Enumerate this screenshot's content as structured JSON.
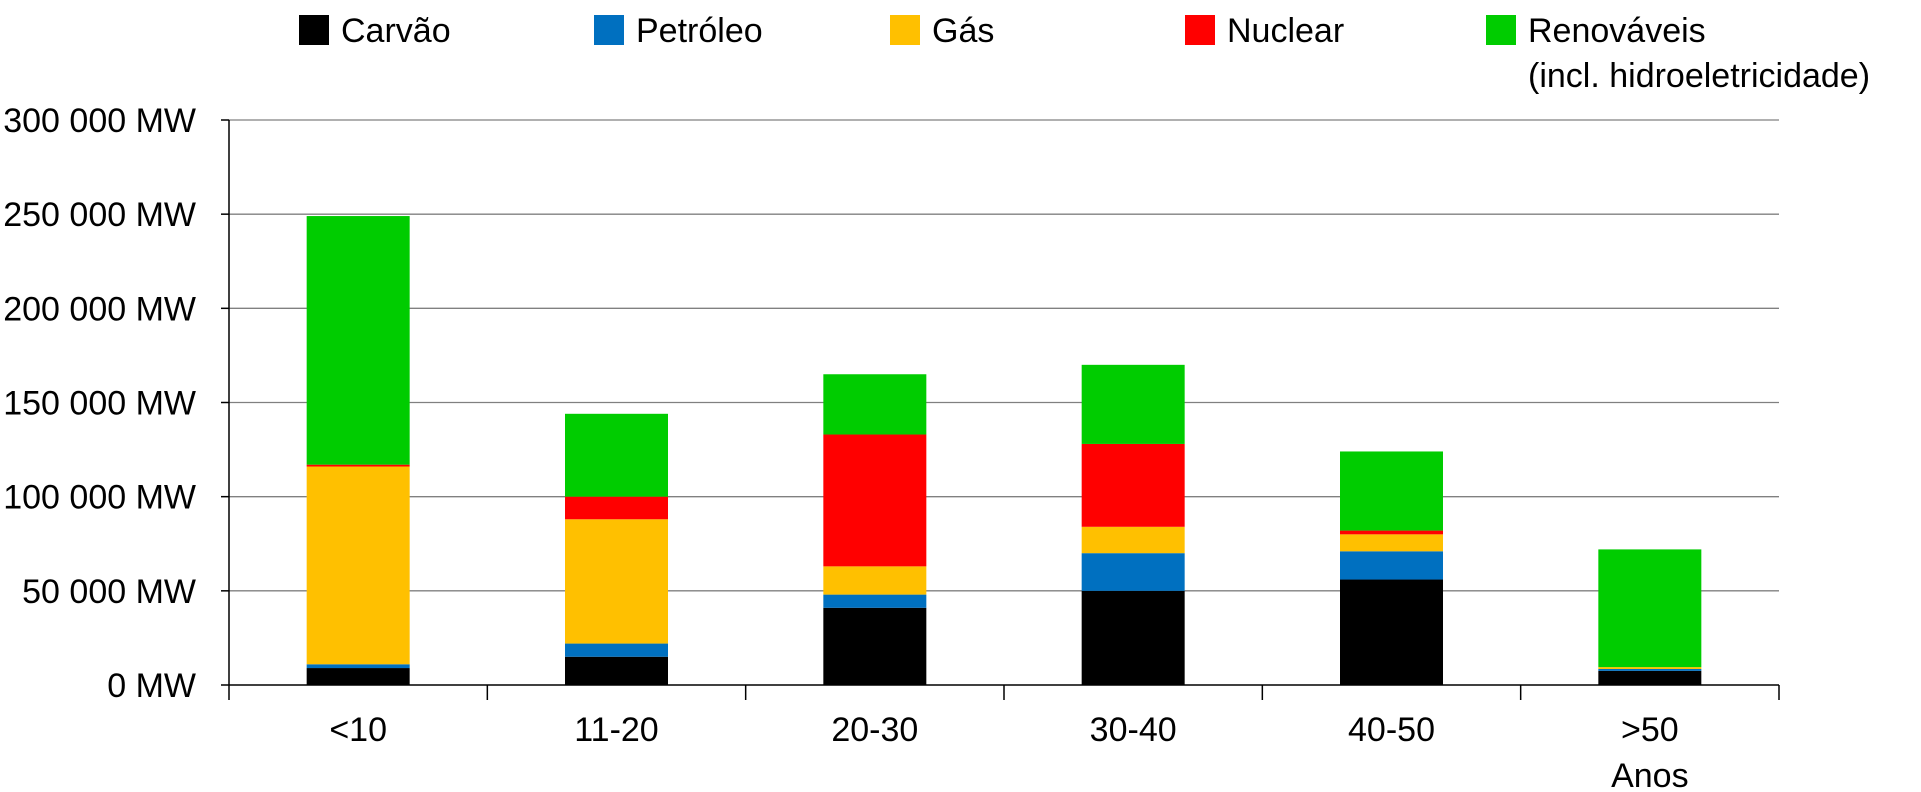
{
  "chart_data": {
    "type": "bar",
    "stacked": true,
    "categories": [
      "<10",
      "11-20",
      "20-30",
      "30-40",
      "40-50",
      ">50"
    ],
    "series": [
      {
        "name": "Carvão",
        "color": "#000000",
        "values": [
          9000,
          15000,
          41000,
          50000,
          56000,
          7500
        ]
      },
      {
        "name": "Petróleo",
        "color": "#0070c0",
        "values": [
          2000,
          7000,
          7000,
          20000,
          15000,
          1000
        ]
      },
      {
        "name": "Gás",
        "color": "#ffc000",
        "values": [
          105000,
          66000,
          15000,
          14000,
          9000,
          1000
        ]
      },
      {
        "name": "Nuclear",
        "color": "#ff0000",
        "values": [
          1000,
          12000,
          70000,
          44000,
          2000,
          0
        ]
      },
      {
        "name": "Renováveis (incl. hidroeletricidade)",
        "color": "#00cc00",
        "values": [
          132000,
          44000,
          32000,
          42000,
          42000,
          62500
        ]
      }
    ],
    "legend": [
      {
        "line1": "Carvão",
        "line2": ""
      },
      {
        "line1": "Petróleo",
        "line2": ""
      },
      {
        "line1": "Gás",
        "line2": ""
      },
      {
        "line1": "Nuclear",
        "line2": ""
      },
      {
        "line1": "Renováveis",
        "line2": "(incl. hidroeletricidade)"
      }
    ],
    "legend_position": "top",
    "y_ticks": [
      "0 MW",
      "50 000 MW",
      "100 000 MW",
      "150 000 MW",
      "200 000 MW",
      "250 000 MW",
      "300 000 MW"
    ],
    "ylim": [
      0,
      300000
    ],
    "xlabel": "Anos",
    "ylabel": "",
    "title": "",
    "grid": true
  }
}
